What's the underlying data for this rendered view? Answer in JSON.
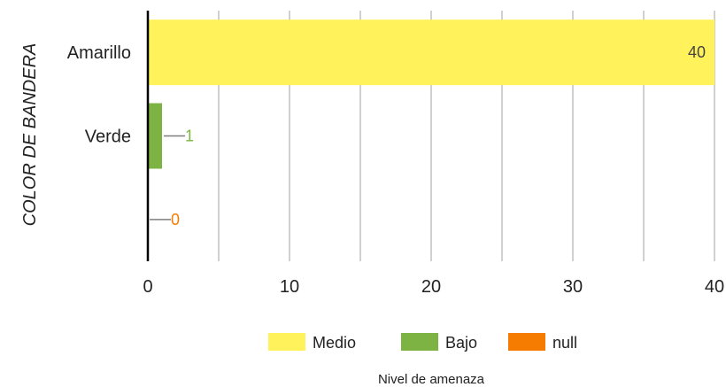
{
  "chart_data": {
    "type": "bar",
    "orientation": "horizontal",
    "categories": [
      "Amarillo",
      "Verde",
      ""
    ],
    "series": [
      {
        "name": "Medio",
        "color": "#fff25a",
        "values": [
          40,
          null,
          null
        ]
      },
      {
        "name": "Bajo",
        "color": "#7cb342",
        "values": [
          null,
          1,
          null
        ]
      },
      {
        "name": "null",
        "color": "#f57c00",
        "values": [
          null,
          null,
          0
        ]
      }
    ],
    "data_labels": [
      "40",
      "1",
      "0"
    ],
    "ylabel": "COLOR DE BANDERA",
    "legend_title": "Nivel de amenaza",
    "xlim": [
      0,
      40
    ],
    "xticks": [
      "0",
      "10",
      "20",
      "30",
      "40"
    ],
    "grid": true,
    "legend_position": "bottom"
  }
}
